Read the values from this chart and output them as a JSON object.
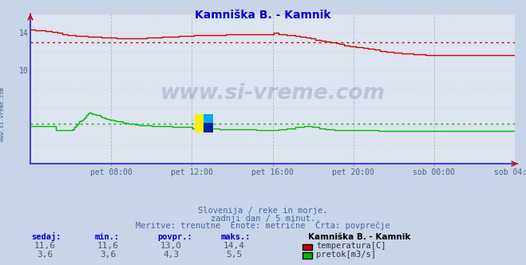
{
  "title": "Kamniška B. - Kamnik",
  "title_color": "#0000cc",
  "bg_color": "#c8d4e8",
  "plot_bg_color": "#dce4f0",
  "grid_v_color": "#aabbcc",
  "grid_h_color": "#ffbbbb",
  "xlabel_color": "#446688",
  "watermark_text": "www.si-vreme.com",
  "watermark_color": "#1a3a6a",
  "watermark_alpha": 0.18,
  "subtitle1": "Slovenija / reke in morje.",
  "subtitle2": "zadnji dan / 5 minut.",
  "subtitle3": "Meritve: trenutne  Enote: metrične  Črta: povprečje",
  "subtitle_color": "#4466aa",
  "left_label": "www.si-vreme.com",
  "left_label_color": "#336699",
  "xlabels": [
    "pet 08:00",
    "pet 12:00",
    "pet 16:00",
    "pet 20:00",
    "sob 00:00",
    "sob 04:00"
  ],
  "ylim": [
    0,
    16
  ],
  "ytick_vals": [
    10,
    14
  ],
  "temp_color": "#cc0000",
  "flow_color": "#00bb00",
  "avg_temp_color": "#cc0000",
  "avg_flow_color": "#00bb00",
  "avg_temp": 13.0,
  "avg_flow": 4.3,
  "temp_max": 14.4,
  "temp_min": 11.6,
  "flow_max": 5.5,
  "flow_min": 3.6,
  "temp_current": 11.6,
  "flow_current": 3.6,
  "legend_title": "Kamniška B. - Kamnik",
  "legend_temp_label": "temperatura[C]",
  "legend_flow_label": "pretok[m3/s]",
  "table_headers": [
    "sedaj:",
    "min.:",
    "povpr.:",
    "maks.:"
  ],
  "table_temp": [
    "11,6",
    "11,6",
    "13,0",
    "14,4"
  ],
  "table_flow": [
    "3,6",
    "3,6",
    "4,3",
    "5,5"
  ],
  "n_points": 288,
  "left_spine_color": "#4444cc",
  "bottom_spine_color": "#4444cc",
  "arrow_color": "#cc0000"
}
